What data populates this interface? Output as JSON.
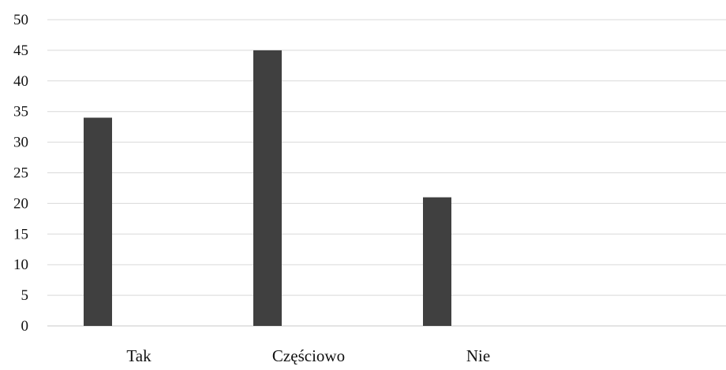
{
  "chart_data": {
    "type": "bar",
    "title": "",
    "xlabel": "",
    "ylabel": "",
    "categories": [
      "Tak",
      "Częściowo",
      "Nie"
    ],
    "series": [
      {
        "values": [
          34,
          45,
          21
        ],
        "color": "#404040"
      }
    ],
    "ylim": [
      0,
      50
    ],
    "yticks": [
      "0",
      "5",
      "10",
      "15",
      "20",
      "25",
      "30",
      "35",
      "40",
      "45",
      "50"
    ],
    "grid": true,
    "legend": "none"
  }
}
